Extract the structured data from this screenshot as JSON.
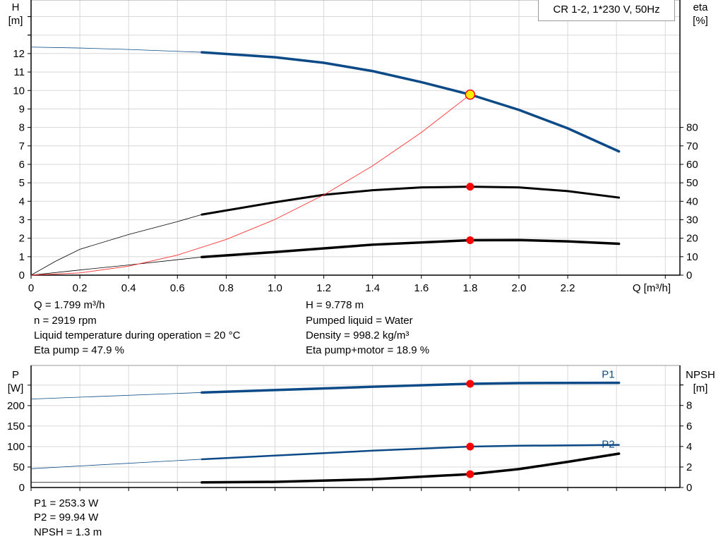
{
  "legend": "CR 1-2, 1*230 V, 50Hz",
  "colors": {
    "head": "#0b4a86",
    "eta": "#000000",
    "system": "#ff3030",
    "point": "#ff0000",
    "op_point": "#ffee00",
    "grid": "#d8d8d8"
  },
  "chart_data": [
    {
      "type": "line",
      "xlabel": "Q [m³/h]",
      "ylabel_left": [
        "H",
        "[m]"
      ],
      "ylabel_right": [
        "eta",
        "[%]"
      ],
      "xlim": [
        0,
        2.66
      ],
      "ylim_left": [
        0,
        14.9
      ],
      "ylim_right": [
        0,
        149
      ],
      "x_ticks": [
        "0",
        "0.2",
        "0.4",
        "0.6",
        "0.8",
        "1.0",
        "1.2",
        "1.4",
        "1.6",
        "1.8",
        "2.0",
        "2.2"
      ],
      "y_ticks_left": [
        "0",
        "1",
        "2",
        "3",
        "4",
        "5",
        "6",
        "7",
        "8",
        "9",
        "10",
        "11",
        "12"
      ],
      "y_ticks_right": [
        "0",
        "10",
        "20",
        "30",
        "40",
        "50",
        "60",
        "70",
        "80"
      ],
      "grid": true,
      "extrapolated_below_q": 0.7,
      "series": [
        {
          "id": "H",
          "axis": "left",
          "x": [
            0,
            0.2,
            0.4,
            0.7,
            1.0,
            1.2,
            1.4,
            1.6,
            1.8,
            2.0,
            2.2,
            2.41
          ],
          "y": [
            12.35,
            12.3,
            12.22,
            12.07,
            11.8,
            11.5,
            11.05,
            10.45,
            9.78,
            8.95,
            7.95,
            6.7
          ]
        },
        {
          "id": "eta_pump",
          "axis": "right",
          "x": [
            0,
            0.1,
            0.2,
            0.4,
            0.6,
            0.7,
            1.0,
            1.2,
            1.4,
            1.6,
            1.8,
            2.0,
            2.2,
            2.41
          ],
          "y": [
            0,
            7.5,
            14,
            22,
            29,
            32.8,
            39.5,
            43.5,
            46,
            47.5,
            47.9,
            47.5,
            45.5,
            42
          ]
        },
        {
          "id": "eta_total",
          "axis": "right",
          "x": [
            0,
            0.2,
            0.4,
            0.7,
            1.0,
            1.4,
            1.8,
            2.0,
            2.2,
            2.41
          ],
          "y": [
            0,
            2.8,
            5.5,
            9.8,
            12.5,
            16.5,
            18.9,
            19,
            18.3,
            17
          ]
        },
        {
          "id": "system",
          "axis": "left",
          "x": [
            0,
            0.2,
            0.4,
            0.6,
            0.8,
            1.0,
            1.2,
            1.4,
            1.6,
            1.8
          ],
          "y": [
            0,
            0.121,
            0.483,
            1.086,
            1.931,
            3.018,
            4.346,
            5.915,
            7.726,
            9.778
          ]
        }
      ],
      "duty_point": {
        "q": 1.8,
        "h": 9.778,
        "eta_pump": 47.9,
        "eta_total": 18.9
      }
    },
    {
      "type": "line",
      "ylabel_left": [
        "P",
        "[W]"
      ],
      "ylabel_right": [
        "NPSH",
        "[m]"
      ],
      "xlim": [
        0,
        2.66
      ],
      "ylim_left": [
        0,
        298
      ],
      "ylim_right": [
        0,
        11.9
      ],
      "y_ticks_left": [
        "0",
        "50",
        "100",
        "150",
        "200",
        ""
      ],
      "y_ticks_right": [
        "0",
        "2",
        "4",
        "6",
        "8",
        ""
      ],
      "grid": true,
      "series": [
        {
          "id": "P1",
          "name": "P1",
          "axis": "left",
          "x": [
            0,
            0.7,
            1.0,
            1.4,
            1.8,
            2.0,
            2.41
          ],
          "y": [
            216,
            232,
            238,
            246,
            253.3,
            255,
            255.5
          ]
        },
        {
          "id": "P2",
          "name": "P2",
          "axis": "left",
          "x": [
            0,
            0.7,
            1.0,
            1.4,
            1.8,
            2.0,
            2.41
          ],
          "y": [
            46,
            69,
            78,
            90,
            99.94,
            102,
            104
          ]
        },
        {
          "id": "NPSH",
          "axis": "right",
          "x": [
            0,
            0.7,
            1.0,
            1.4,
            1.8,
            2.0,
            2.2,
            2.41
          ],
          "y": [
            0.5,
            0.5,
            0.55,
            0.8,
            1.3,
            1.8,
            2.5,
            3.3
          ]
        }
      ],
      "duty_point": {
        "q": 1.8,
        "p1": 253.3,
        "p2": 99.94,
        "npsh": 1.3
      }
    }
  ],
  "info": {
    "q": "Q = 1.799 m³/h",
    "n": "n = 2919 rpm",
    "temp": "Liquid temperature during operation = 20 °C",
    "eta_pump": "Eta pump = 47.9 %",
    "h": "H = 9.778 m",
    "liquid": "Pumped liquid = Water",
    "density": "Density = 998.2 kg/m³",
    "eta_total": "Eta pump+motor = 18.9 %",
    "p1": "P1 = 253.3 W",
    "p2": "P2 = 99.94 W",
    "npsh": "NPSH = 1.3 m"
  }
}
